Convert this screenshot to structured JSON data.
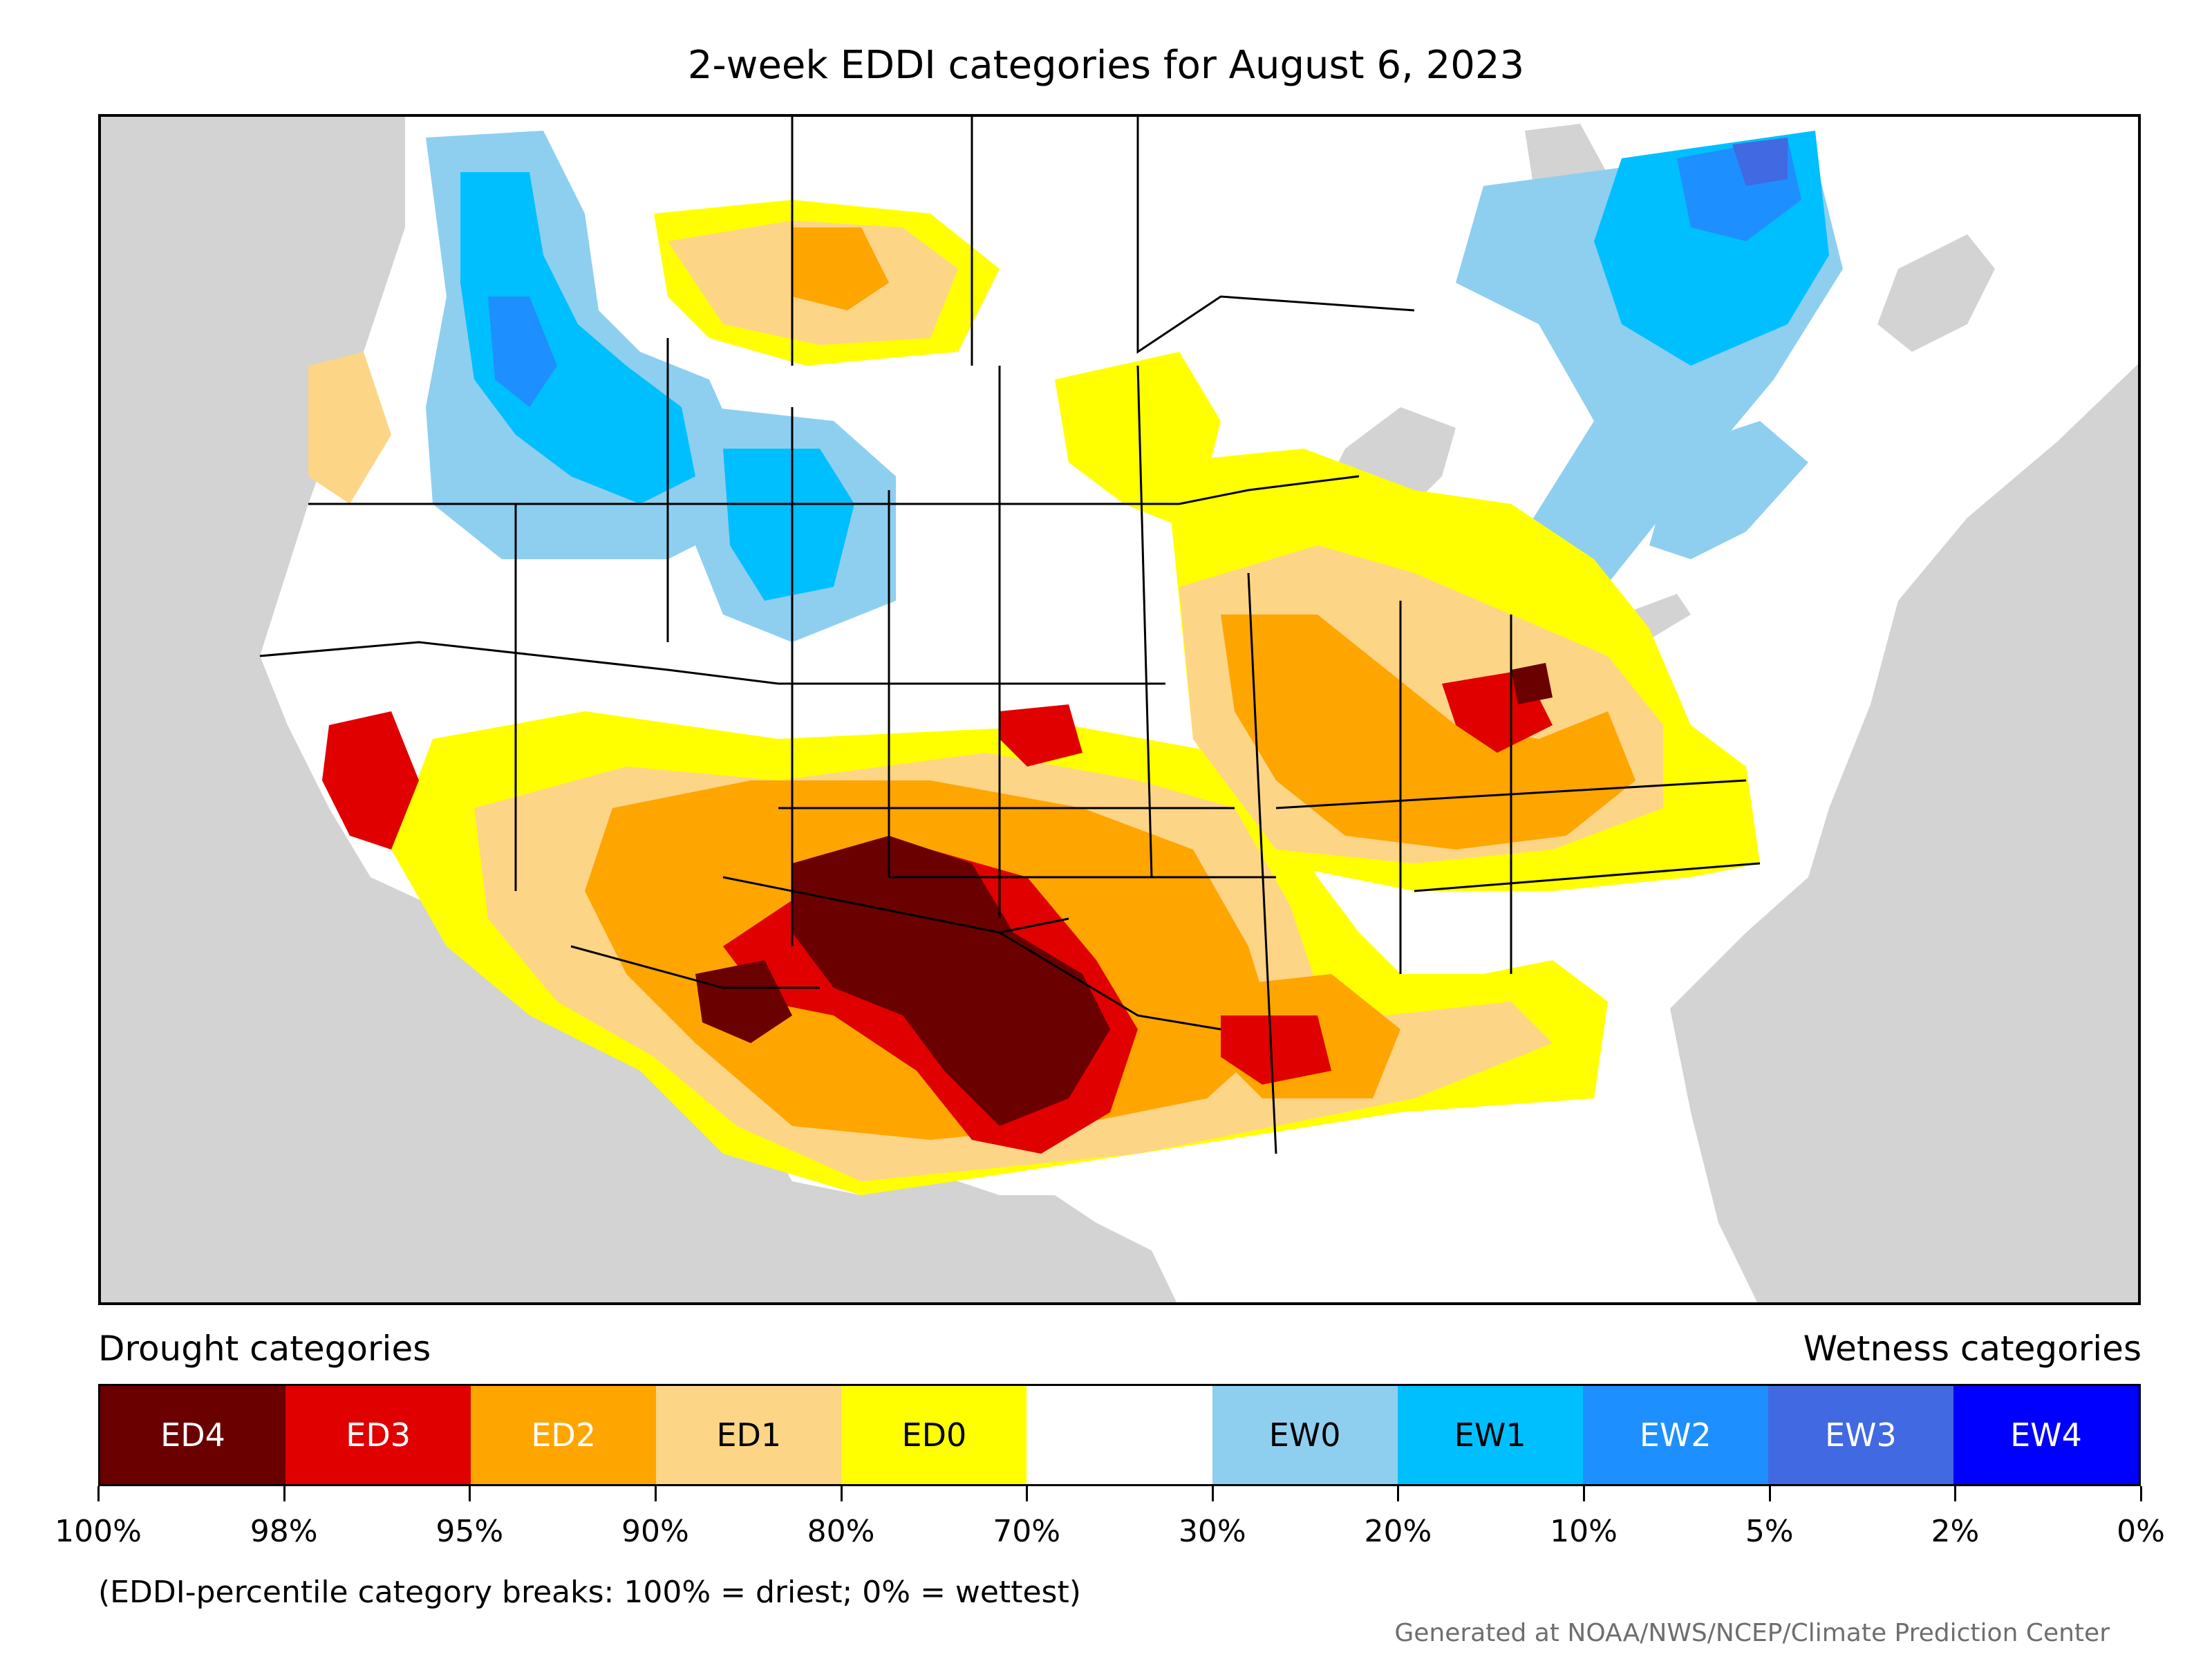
{
  "title": "2-week EDDI categories for August 6, 2023",
  "map": {
    "projection": "lambert-conformal CONUS",
    "background_color": "#d3d3d3"
  },
  "legend": {
    "left_label": "Drought categories",
    "right_label": "Wetness categories",
    "categories": [
      {
        "label": "ED4",
        "color": "#6b0000",
        "text_color": "#ffffff"
      },
      {
        "label": "ED3",
        "color": "#e00000",
        "text_color": "#ffffff"
      },
      {
        "label": "ED2",
        "color": "#ffa500",
        "text_color": "#ffffff"
      },
      {
        "label": "ED1",
        "color": "#fdd587",
        "text_color": "#000000"
      },
      {
        "label": "ED0",
        "color": "#ffff00",
        "text_color": "#000000"
      },
      {
        "label": "",
        "color": "#ffffff",
        "text_color": "#000000"
      },
      {
        "label": "EW0",
        "color": "#8ecff0",
        "text_color": "#000000"
      },
      {
        "label": "EW1",
        "color": "#00bfff",
        "text_color": "#000000"
      },
      {
        "label": "EW2",
        "color": "#1e8fff",
        "text_color": "#ffffff"
      },
      {
        "label": "EW3",
        "color": "#4169e1",
        "text_color": "#ffffff"
      },
      {
        "label": "EW4",
        "color": "#0000ff",
        "text_color": "#ffffff"
      }
    ],
    "tick_labels": [
      "100%",
      "98%",
      "95%",
      "90%",
      "80%",
      "70%",
      "30%",
      "20%",
      "10%",
      "5%",
      "2%",
      "0%"
    ]
  },
  "note": "(EDDI-percentile category breaks: 100% = driest; 0% = wettest)",
  "credit": "Generated at NOAA/NWS/NCEP/Climate Prediction Center"
}
